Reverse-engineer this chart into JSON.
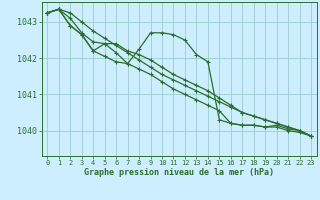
{
  "background_color": "#cceeff",
  "grid_color": "#99cccc",
  "line_color": "#2d6e2d",
  "title": "Graphe pression niveau de la mer (hPa)",
  "xlim": [
    -0.5,
    23.5
  ],
  "ylim": [
    1039.3,
    1043.55
  ],
  "yticks": [
    1040,
    1041,
    1042,
    1043
  ],
  "xticks": [
    0,
    1,
    2,
    3,
    4,
    5,
    6,
    7,
    8,
    9,
    10,
    11,
    12,
    13,
    14,
    15,
    16,
    17,
    18,
    19,
    20,
    21,
    22,
    23
  ],
  "series": [
    [
      1043.25,
      1043.35,
      1043.25,
      1043.0,
      1042.75,
      1042.55,
      1042.35,
      1042.15,
      1041.95,
      1041.75,
      1041.55,
      1041.4,
      1041.25,
      1041.1,
      1040.95,
      1040.8,
      1040.65,
      1040.5,
      1040.4,
      1040.3,
      1040.2,
      1040.1,
      1040.0,
      1039.85
    ],
    [
      1043.25,
      1043.35,
      1042.9,
      1042.65,
      1042.2,
      1042.05,
      1041.9,
      1041.85,
      1042.25,
      1042.7,
      1042.7,
      1042.65,
      1042.5,
      1042.1,
      1041.9,
      1040.3,
      1040.2,
      1040.15,
      1040.15,
      1040.1,
      1040.15,
      1040.05,
      1040.0,
      1039.85
    ],
    [
      1043.25,
      1043.35,
      1042.9,
      1042.65,
      1042.2,
      1042.4,
      1042.15,
      1041.85,
      1041.7,
      1041.55,
      1041.35,
      1041.15,
      1041.0,
      1040.85,
      1040.7,
      1040.55,
      1040.2,
      1040.15,
      1040.15,
      1040.1,
      1040.1,
      1040.0,
      1039.95,
      1039.85
    ],
    [
      1043.25,
      1043.35,
      1043.1,
      1042.7,
      1042.45,
      1042.4,
      1042.4,
      1042.2,
      1042.1,
      1041.95,
      1041.75,
      1041.55,
      1041.4,
      1041.25,
      1041.1,
      1040.9,
      1040.7,
      1040.5,
      1040.4,
      1040.3,
      1040.2,
      1040.1,
      1040.0,
      1039.85
    ]
  ]
}
